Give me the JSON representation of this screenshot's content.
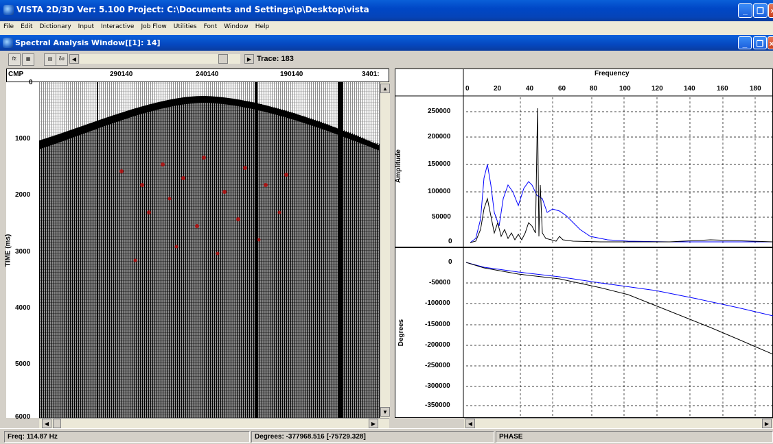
{
  "app": {
    "title": "VISTA 2D/3D Ver: 5.100 Project: C:\\Documents and Settings\\p\\Desktop\\vista",
    "menu": [
      "File",
      "Edit",
      "Dictionary",
      "Input",
      "Interactive",
      "Job Flow",
      "Utilities",
      "Font",
      "Window",
      "Help"
    ]
  },
  "child_window": {
    "title": "Spectral Analysis Window[[1]: 14]",
    "trace_label": "Trace: 183"
  },
  "toolbar": {
    "buttons": [
      "fx-button",
      "spectrum-button",
      "display-button",
      "phase-button"
    ]
  },
  "seismic": {
    "cmp_label": "CMP",
    "cmp_ticks": [
      "290140",
      "240140",
      "190140",
      "3401:"
    ],
    "y_label": "TIME (ms)",
    "y_ticks": [
      "0",
      "1000",
      "2000",
      "3000",
      "4000",
      "5000",
      "6000"
    ]
  },
  "spectrum": {
    "x_label": "Frequency",
    "x_ticks": [
      "0",
      "20",
      "40",
      "60",
      "80",
      "100",
      "120",
      "140",
      "160",
      "180"
    ],
    "amp_label": "Amplitude",
    "amp_ticks": [
      "250000",
      "200000",
      "150000",
      "100000",
      "50000",
      "0"
    ],
    "phase_label": "Degrees",
    "phase_ticks": [
      "0",
      "-50000",
      "-100000",
      "-150000",
      "-200000",
      "-250000",
      "-300000",
      "-350000"
    ]
  },
  "status": {
    "freq": "Freq: 114.87 Hz",
    "degrees": "Degrees: -377968.516 [-75729.328]",
    "mode": "PHASE"
  },
  "colors": {
    "series_blue": "#0000ff",
    "series_black": "#000000",
    "highlight_red": "#c00000"
  }
}
